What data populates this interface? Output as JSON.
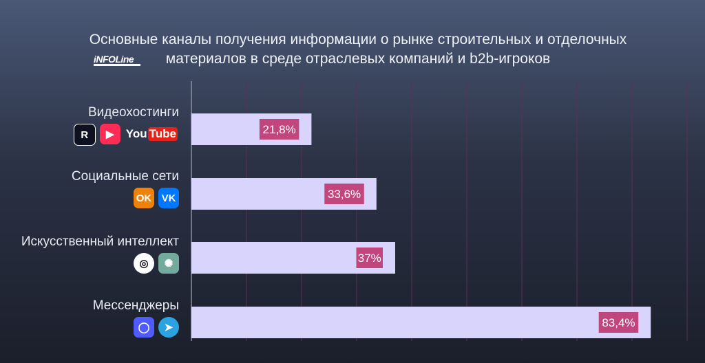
{
  "header": {
    "title_line1": "Основные каналы получения информации о рынке строительных и отделочных",
    "title_line2": "материалов в среде отраслевых компаний и b2b-игроков",
    "logo_text": "iNFOLine"
  },
  "colors": {
    "bar_fill": "#d8d4fb",
    "label_bg": "#c1467e",
    "label_text": "#ffffff",
    "grid": "#5b2f57"
  },
  "chart_data": {
    "type": "bar",
    "orientation": "horizontal",
    "categories": [
      "Видеохостинги",
      "Социальные сети",
      "Искусственный интеллект",
      "Мессенджеры"
    ],
    "values": [
      21.8,
      33.6,
      37,
      83.4
    ],
    "value_labels": [
      "21,8%",
      "33,6%",
      "37%",
      "83,4%"
    ],
    "xlim": [
      0,
      90
    ],
    "grid": true,
    "icons": [
      [
        "rutube-icon",
        "vk-video-icon",
        "youtube-icon"
      ],
      [
        "odnoklassniki-icon",
        "vk-icon"
      ],
      [
        "gigachat-icon",
        "chatgpt-icon"
      ],
      [
        "max-messenger-icon",
        "telegram-icon"
      ]
    ]
  }
}
